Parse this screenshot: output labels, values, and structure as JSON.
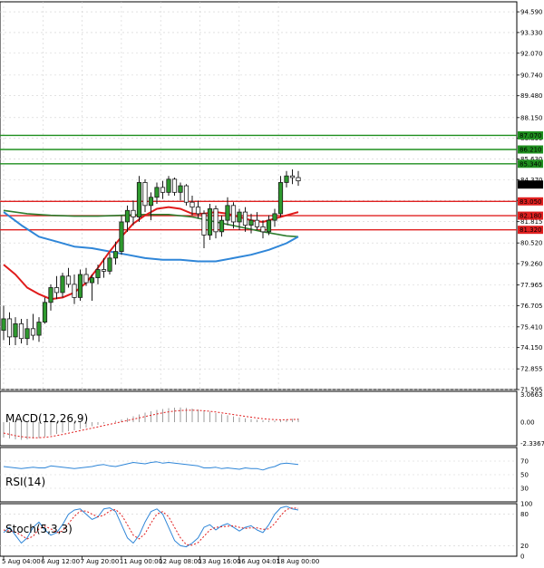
{
  "chart_data": {
    "type": "candlestick",
    "instrument": "",
    "main": {
      "ylim": [
        71.595,
        95.2
      ],
      "y_ticks": [
        "94.590",
        "93.330",
        "92.070",
        "90.740",
        "89.480",
        "88.150",
        "86.890",
        "85.630",
        "84.370",
        "83.110",
        "81.815",
        "80.520",
        "79.260",
        "77.965",
        "76.705",
        "75.410",
        "74.150",
        "72.855",
        "71.595"
      ],
      "candles": [
        [
          75.2,
          76.7,
          74.6,
          75.9
        ],
        [
          75.9,
          76.3,
          74.3,
          74.8
        ],
        [
          74.8,
          76.0,
          74.3,
          75.6
        ],
        [
          75.6,
          75.9,
          74.4,
          74.7
        ],
        [
          74.7,
          75.9,
          74.3,
          75.3
        ],
        [
          75.3,
          76.2,
          74.6,
          74.9
        ],
        [
          74.9,
          76.0,
          74.5,
          75.7
        ],
        [
          75.7,
          77.2,
          75.6,
          76.9
        ],
        [
          76.9,
          78.0,
          76.4,
          77.8
        ],
        [
          77.8,
          78.5,
          77.1,
          77.5
        ],
        [
          77.5,
          78.7,
          77.2,
          78.5
        ],
        [
          78.5,
          79.0,
          77.8,
          78.0
        ],
        [
          78.0,
          78.6,
          76.8,
          77.2
        ],
        [
          77.2,
          78.9,
          77.0,
          78.6
        ],
        [
          78.6,
          79.0,
          77.9,
          78.1
        ],
        [
          78.1,
          78.6,
          77.0,
          78.4
        ],
        [
          78.4,
          79.2,
          78.0,
          78.9
        ],
        [
          78.9,
          79.6,
          78.4,
          78.8
        ],
        [
          78.8,
          79.9,
          78.6,
          79.6
        ],
        [
          79.6,
          80.6,
          79.2,
          80.0
        ],
        [
          80.0,
          82.2,
          79.8,
          81.8
        ],
        [
          81.8,
          82.8,
          81.2,
          82.5
        ],
        [
          82.5,
          83.1,
          81.6,
          82.1
        ],
        [
          82.1,
          84.6,
          81.8,
          84.2
        ],
        [
          84.2,
          84.4,
          82.4,
          82.8
        ],
        [
          82.8,
          83.6,
          81.9,
          83.3
        ],
        [
          83.3,
          84.2,
          82.9,
          83.9
        ],
        [
          83.9,
          84.3,
          83.2,
          83.6
        ],
        [
          83.6,
          84.6,
          83.4,
          84.4
        ],
        [
          84.4,
          84.5,
          83.4,
          83.6
        ],
        [
          83.6,
          84.2,
          83.1,
          84.0
        ],
        [
          84.0,
          84.1,
          82.8,
          83.0
        ],
        [
          83.0,
          83.4,
          82.2,
          82.7
        ],
        [
          82.7,
          83.1,
          82.0,
          82.3
        ],
        [
          82.3,
          82.5,
          80.2,
          81.0
        ],
        [
          81.0,
          82.9,
          80.7,
          82.6
        ],
        [
          82.6,
          82.8,
          80.8,
          81.2
        ],
        [
          81.2,
          82.2,
          80.9,
          81.9
        ],
        [
          81.9,
          83.3,
          81.6,
          82.8
        ],
        [
          82.8,
          83.0,
          81.4,
          81.8
        ],
        [
          81.8,
          82.6,
          81.3,
          82.4
        ],
        [
          82.4,
          82.7,
          81.2,
          81.6
        ],
        [
          81.6,
          82.3,
          81.1,
          81.9
        ],
        [
          81.9,
          82.4,
          81.3,
          81.5
        ],
        [
          81.5,
          81.9,
          80.8,
          81.2
        ],
        [
          81.2,
          82.2,
          81.0,
          81.9
        ],
        [
          81.9,
          82.6,
          81.5,
          82.3
        ],
        [
          82.3,
          84.6,
          82.1,
          84.2
        ],
        [
          84.2,
          84.9,
          83.9,
          84.6
        ],
        [
          84.6,
          85.0,
          84.1,
          84.5
        ],
        [
          84.5,
          84.9,
          84.0,
          84.3
        ]
      ],
      "horizontal_levels": [
        {
          "value": 87.07,
          "label": "87.070",
          "color": "#1f8f1f"
        },
        {
          "value": 86.21,
          "label": "86.210",
          "color": "#1f8f1f"
        },
        {
          "value": 85.34,
          "label": "85.340",
          "color": "#1f8f1f"
        },
        {
          "value": 83.05,
          "label": "83.050",
          "color": "#e02020"
        },
        {
          "value": 82.18,
          "label": "82.180",
          "color": "#e02020"
        },
        {
          "value": 81.32,
          "label": "81.320",
          "color": "#e02020"
        }
      ],
      "current_price": {
        "value": 84.075,
        "label": "84.075"
      },
      "ma_blue": [
        [
          0,
          82.4
        ],
        [
          3,
          81.6
        ],
        [
          6,
          80.9
        ],
        [
          9,
          80.6
        ],
        [
          12,
          80.3
        ],
        [
          15,
          80.2
        ],
        [
          18,
          80.0
        ],
        [
          21,
          79.8
        ],
        [
          24,
          79.6
        ],
        [
          27,
          79.5
        ],
        [
          30,
          79.5
        ],
        [
          33,
          79.4
        ],
        [
          36,
          79.4
        ],
        [
          39,
          79.6
        ],
        [
          42,
          79.8
        ],
        [
          45,
          80.1
        ],
        [
          48,
          80.5
        ],
        [
          50,
          80.9
        ]
      ],
      "ma_red": [
        [
          0,
          79.2
        ],
        [
          2,
          78.6
        ],
        [
          4,
          77.8
        ],
        [
          6,
          77.4
        ],
        [
          8,
          77.1
        ],
        [
          10,
          77.2
        ],
        [
          12,
          77.5
        ],
        [
          14,
          78.1
        ],
        [
          16,
          79.0
        ],
        [
          18,
          80.0
        ],
        [
          20,
          80.9
        ],
        [
          22,
          81.7
        ],
        [
          24,
          82.2
        ],
        [
          26,
          82.6
        ],
        [
          28,
          82.7
        ],
        [
          30,
          82.6
        ],
        [
          32,
          82.3
        ],
        [
          34,
          82.3
        ],
        [
          36,
          82.4
        ],
        [
          38,
          82.3
        ],
        [
          40,
          82.1
        ],
        [
          42,
          81.9
        ],
        [
          44,
          81.8
        ],
        [
          46,
          82.0
        ],
        [
          48,
          82.2
        ],
        [
          50,
          82.4
        ]
      ],
      "ma_green": [
        [
          0,
          82.5
        ],
        [
          4,
          82.3
        ],
        [
          8,
          82.2
        ],
        [
          12,
          82.15
        ],
        [
          16,
          82.15
        ],
        [
          20,
          82.2
        ],
        [
          24,
          82.25
        ],
        [
          28,
          82.25
        ],
        [
          32,
          82.1
        ],
        [
          36,
          81.8
        ],
        [
          40,
          81.5
        ],
        [
          44,
          81.2
        ],
        [
          48,
          80.95
        ],
        [
          50,
          80.9
        ]
      ]
    },
    "macd": {
      "label": "MACD(12,26,9)",
      "y_ticks": [
        "3.0663",
        "0.00",
        "-2.3367"
      ],
      "ylim": [
        -2.6,
        3.4
      ],
      "histogram": [
        -1.7,
        -1.8,
        -1.9,
        -1.95,
        -1.9,
        -1.8,
        -1.75,
        -1.6,
        -1.45,
        -1.3,
        -1.15,
        -1.0,
        -0.9,
        -0.75,
        -0.6,
        -0.45,
        -0.3,
        -0.15,
        0.0,
        0.15,
        0.3,
        0.45,
        0.65,
        0.85,
        1.05,
        1.2,
        1.35,
        1.45,
        1.55,
        1.6,
        1.62,
        1.58,
        1.5,
        1.4,
        1.28,
        1.15,
        1.0,
        0.88,
        0.76,
        0.64,
        0.52,
        0.42,
        0.34,
        0.26,
        0.2,
        0.16,
        0.16,
        0.22,
        0.3,
        0.36,
        0.4
      ],
      "signal": [
        -1.2,
        -1.35,
        -1.5,
        -1.6,
        -1.68,
        -1.72,
        -1.72,
        -1.68,
        -1.6,
        -1.48,
        -1.36,
        -1.22,
        -1.08,
        -0.94,
        -0.8,
        -0.66,
        -0.52,
        -0.38,
        -0.24,
        -0.1,
        0.04,
        0.18,
        0.32,
        0.47,
        0.62,
        0.76,
        0.9,
        1.03,
        1.14,
        1.22,
        1.28,
        1.31,
        1.32,
        1.3,
        1.26,
        1.2,
        1.12,
        1.03,
        0.94,
        0.84,
        0.74,
        0.64,
        0.55,
        0.46,
        0.38,
        0.32,
        0.28,
        0.26,
        0.27,
        0.29,
        0.31
      ]
    },
    "rsi": {
      "label": "RSI(14)",
      "y_ticks": [
        "70",
        "50",
        "30"
      ],
      "ylim": [
        10,
        90
      ],
      "values": [
        62,
        61,
        60,
        59,
        60,
        61,
        60,
        60,
        63,
        62,
        61,
        60,
        59,
        60,
        61,
        62,
        64,
        65,
        63,
        62,
        64,
        66,
        68,
        67,
        66,
        68,
        69,
        67,
        68,
        67,
        66,
        65,
        64,
        63,
        60,
        60,
        61,
        59,
        60,
        59,
        58,
        60,
        59,
        59,
        57,
        60,
        62,
        66,
        67,
        66,
        65
      ]
    },
    "stoch": {
      "label": "Stoch(5,3,3)",
      "y_ticks": [
        "100",
        "80",
        "20",
        "0"
      ],
      "ylim": [
        0,
        100
      ],
      "k": [
        45,
        55,
        40,
        25,
        35,
        55,
        65,
        50,
        40,
        45,
        60,
        80,
        88,
        90,
        80,
        70,
        75,
        90,
        92,
        85,
        60,
        35,
        25,
        40,
        65,
        85,
        90,
        80,
        55,
        30,
        20,
        18,
        25,
        35,
        55,
        60,
        50,
        58,
        62,
        55,
        48,
        55,
        58,
        50,
        45,
        60,
        80,
        92,
        95,
        90,
        88
      ],
      "d": [
        50,
        48,
        46,
        40,
        33,
        38,
        52,
        57,
        52,
        45,
        48,
        62,
        76,
        86,
        86,
        80,
        75,
        78,
        86,
        89,
        79,
        60,
        40,
        33,
        43,
        63,
        80,
        85,
        75,
        55,
        35,
        22,
        21,
        26,
        38,
        50,
        55,
        56,
        57,
        58,
        55,
        53,
        54,
        54,
        51,
        52,
        62,
        77,
        89,
        92,
        91
      ]
    },
    "x_ticks": [
      "5 Aug 04:00",
      "6 Aug 12:00",
      "7 Aug 20:00",
      "11 Aug 00:00",
      "12 Aug 08:00",
      "13 Aug 16:00",
      "16 Aug 04:01",
      "18 Aug 00:00"
    ],
    "colors": {
      "bull_fill": "#2e9a2e",
      "bear_fill": "#ffffff",
      "candle_outline": "#1a1a1a",
      "ma_blue": "#2f86d8",
      "ma_red": "#e01b1b",
      "ma_green": "#2e7d2e",
      "macd_signal": "#e01b1b",
      "macd_hist": "#9e9e9e",
      "rsi_line": "#2f86d8",
      "stoch_k": "#2f86d8",
      "stoch_d": "#e01b1b",
      "grid": "#d0d0d0",
      "frame": "#000000"
    }
  }
}
